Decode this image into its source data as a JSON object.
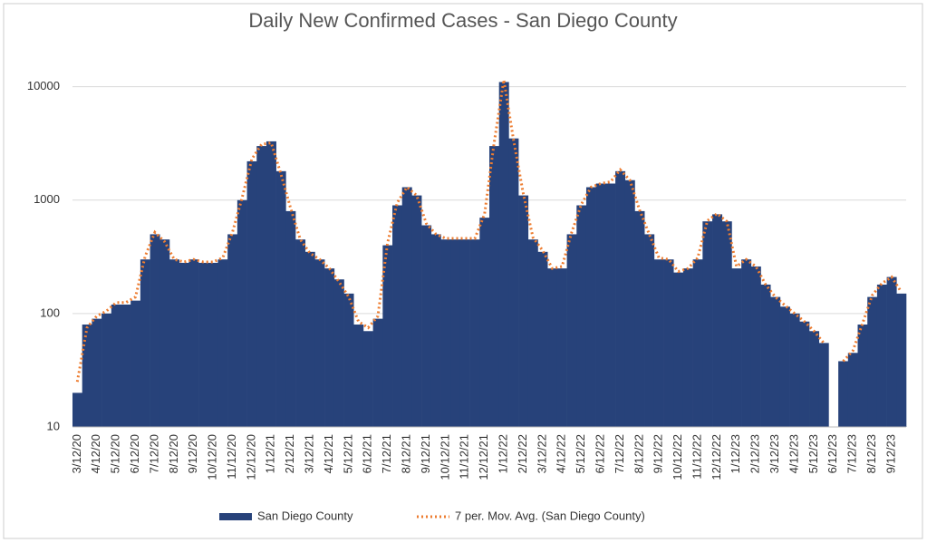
{
  "chart_data": {
    "type": "bar",
    "title": "Daily New Confirmed Cases - San Diego County",
    "categories": [
      "3/12/20",
      null,
      "4/12/20",
      null,
      "5/12/20",
      null,
      "6/12/20",
      null,
      "7/12/20",
      null,
      "8/12/20",
      null,
      "9/12/20",
      null,
      "10/12/20",
      null,
      "11/12/20",
      null,
      "12/12/20",
      null,
      "1/12/21",
      null,
      "2/12/21",
      null,
      "3/12/21",
      null,
      "4/12/21",
      null,
      "5/12/21",
      null,
      "6/12/21",
      null,
      "7/12/21",
      null,
      "8/12/21",
      null,
      "9/12/21",
      null,
      "10/12/21",
      null,
      "11/12/21",
      null,
      "12/12/21",
      null,
      "1/12/22",
      null,
      "2/12/22",
      null,
      "3/12/22",
      null,
      "4/12/22",
      null,
      "5/12/22",
      null,
      "6/12/22",
      null,
      "7/12/22",
      null,
      "8/12/22",
      null,
      "9/12/22",
      null,
      "10/12/22",
      null,
      "11/12/22",
      null,
      "12/12/22",
      null,
      "1/12/23",
      null,
      "2/12/23",
      null,
      "3/12/23",
      null,
      "4/12/23",
      null,
      "5/12/23",
      null,
      "6/12/23",
      null,
      "7/12/23",
      null,
      "8/12/23",
      null,
      "9/12/23",
      null
    ],
    "series": [
      {
        "name": "San Diego County",
        "type": "bar",
        "color": "#27427a",
        "values": [
          20,
          80,
          90,
          100,
          120,
          120,
          130,
          300,
          500,
          450,
          300,
          280,
          300,
          280,
          280,
          300,
          500,
          1000,
          2200,
          3000,
          3300,
          1800,
          800,
          450,
          350,
          300,
          250,
          200,
          150,
          80,
          70,
          90,
          400,
          900,
          1300,
          1100,
          600,
          500,
          450,
          450,
          450,
          450,
          700,
          3000,
          11000,
          3500,
          1100,
          450,
          350,
          250,
          250,
          500,
          900,
          1300,
          1400,
          1400,
          1800,
          1500,
          800,
          500,
          300,
          300,
          230,
          250,
          300,
          650,
          750,
          650,
          250,
          300,
          260,
          180,
          140,
          115,
          100,
          85,
          70,
          55,
          null,
          38,
          45,
          80,
          140,
          180,
          210,
          150
        ]
      },
      {
        "name": "7 per. Mov. Avg. (San Diego County)",
        "type": "line",
        "color": "#ed7d31",
        "values": [
          25,
          75,
          95,
          105,
          125,
          125,
          140,
          320,
          520,
          430,
          300,
          285,
          300,
          285,
          285,
          310,
          520,
          1050,
          2300,
          3100,
          3200,
          1700,
          850,
          450,
          340,
          300,
          250,
          190,
          140,
          85,
          75,
          95,
          420,
          950,
          1300,
          1100,
          620,
          500,
          460,
          460,
          460,
          460,
          750,
          3200,
          11500,
          3400,
          1150,
          470,
          360,
          250,
          260,
          520,
          920,
          1300,
          1400,
          1450,
          1850,
          1500,
          820,
          500,
          310,
          300,
          235,
          250,
          310,
          660,
          760,
          650,
          260,
          300,
          260,
          180,
          140,
          118,
          100,
          85,
          70,
          55,
          null,
          38,
          47,
          82,
          145,
          185,
          210,
          155
        ]
      }
    ],
    "ylim": [
      10,
      20000
    ],
    "yticks": [
      10,
      100,
      1000,
      10000
    ],
    "log_scale": true,
    "grid": true,
    "legend": "bottom"
  }
}
